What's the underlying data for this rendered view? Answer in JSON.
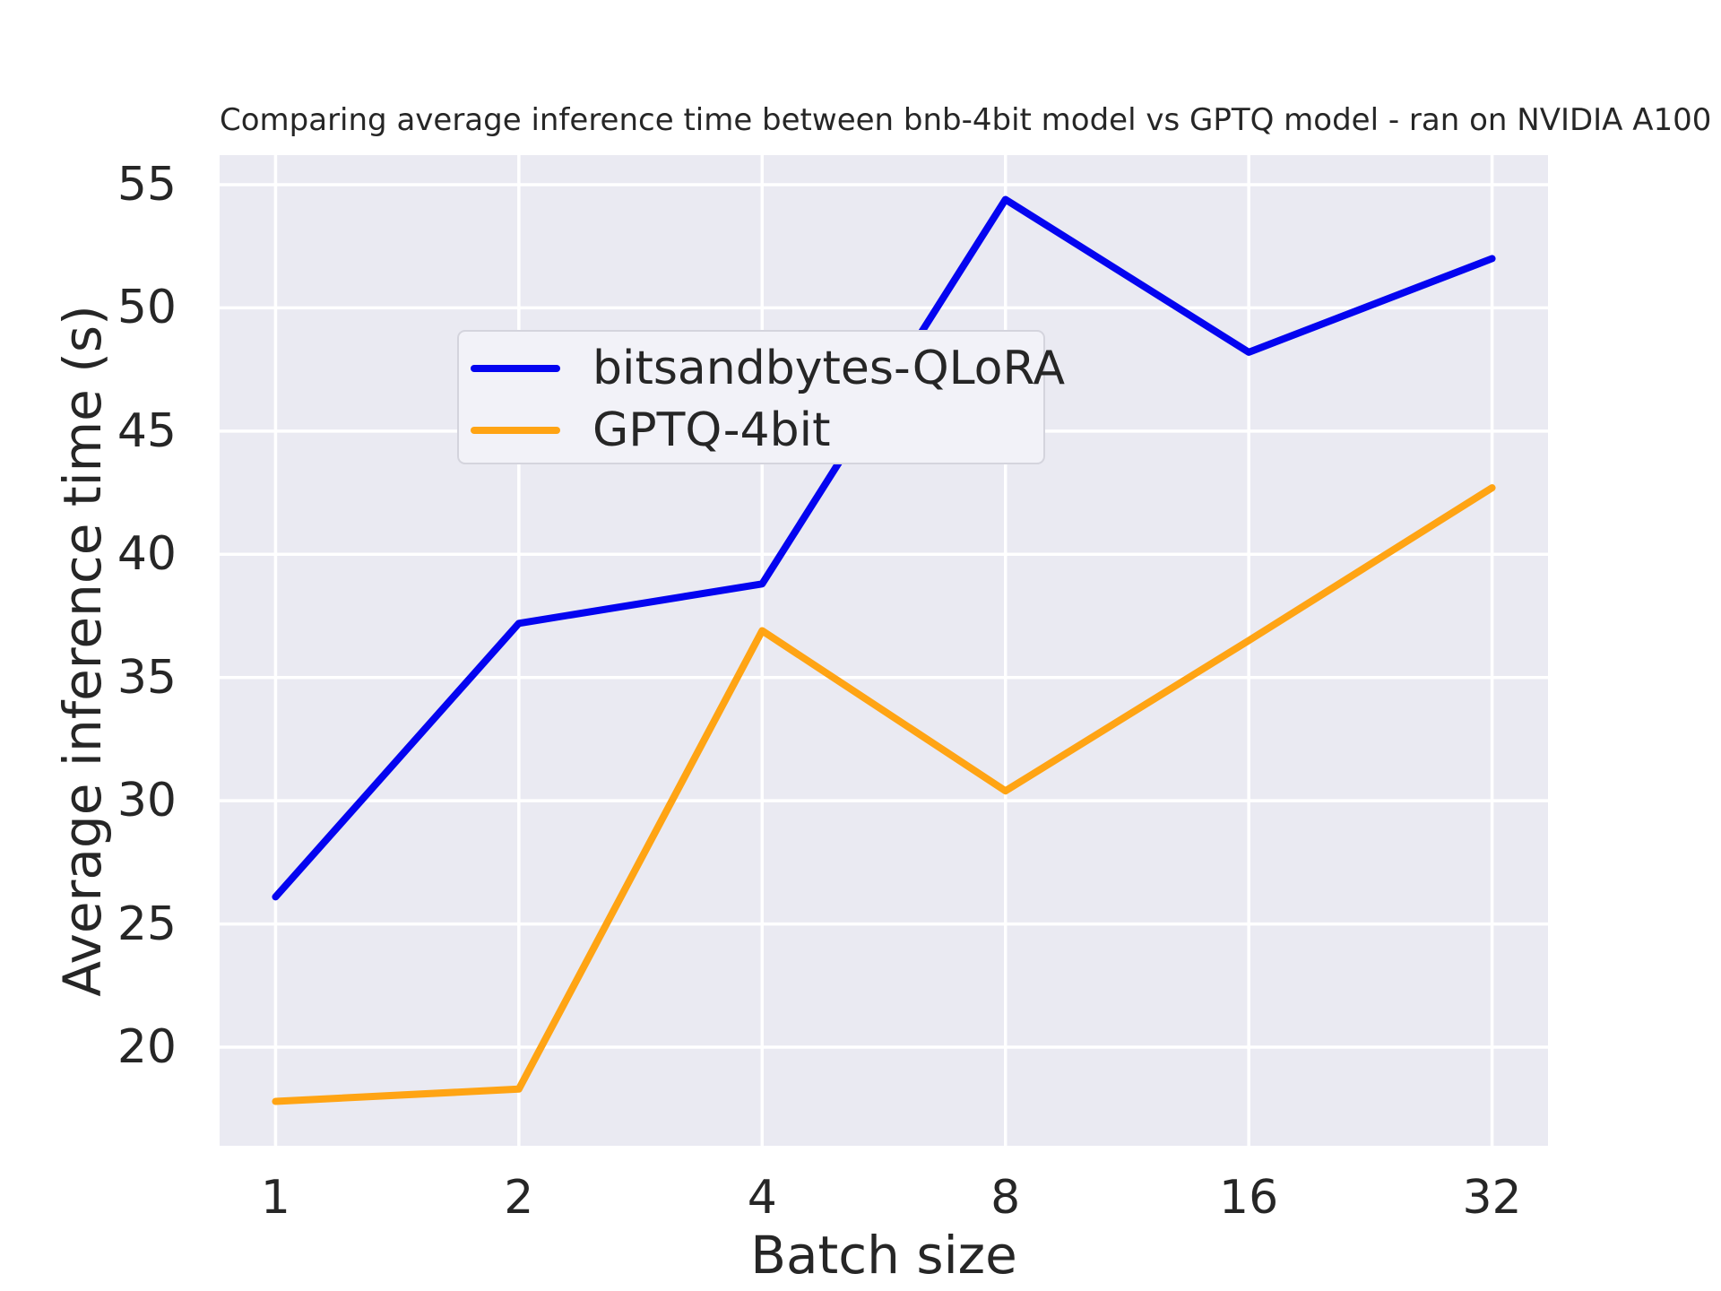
{
  "title": "Comparing average inference time between bnb-4bit model vs GPTQ model - ran on NVIDIA A100",
  "legend": {
    "items": [
      {
        "label": "bitsandbytes-QLoRA",
        "color": "#0404f0"
      },
      {
        "label": "GPTQ-4bit",
        "color": "#ffa414"
      }
    ]
  },
  "chart_data": {
    "type": "line",
    "title": "Comparing average inference time between bnb-4bit model vs GPTQ model - ran on NVIDIA A100",
    "xlabel": "Batch size",
    "ylabel": "Average inference time (s)",
    "x": [
      1,
      2,
      4,
      8,
      16,
      32
    ],
    "xtick_labels": [
      "1",
      "2",
      "4",
      "8",
      "16",
      "32"
    ],
    "x_scale": "log2",
    "series": [
      {
        "name": "bitsandbytes-QLoRA",
        "color": "#0404f0",
        "values": [
          26.1,
          37.2,
          38.8,
          54.4,
          48.2,
          52.0
        ]
      },
      {
        "name": "GPTQ-4bit",
        "color": "#ffa414",
        "values": [
          17.8,
          18.3,
          36.9,
          30.4,
          36.5,
          42.7
        ]
      }
    ],
    "yticks": [
      20,
      25,
      30,
      35,
      40,
      45,
      50,
      55
    ],
    "ylim": [
      16.0,
      56.2
    ],
    "xlim_log2": [
      -0.23,
      5.23
    ],
    "grid": true,
    "legend_position": "upper left",
    "styles": {
      "figure_bg": "#ffffff",
      "axes_bg": "#eaeaf2",
      "grid_color": "#ffffff",
      "text_color": "#262626",
      "line_width": 8
    }
  }
}
